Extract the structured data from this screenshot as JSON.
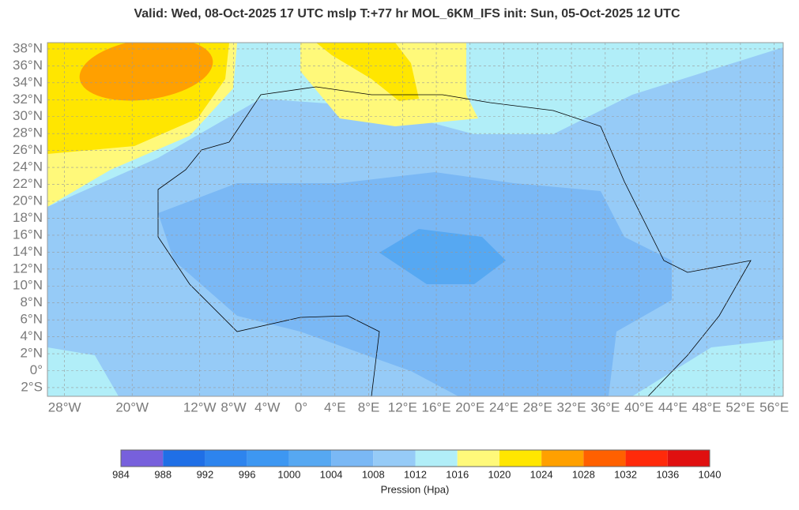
{
  "header": {
    "title": "Valid: Wed, 08-Oct-2025   17 UTC   mslp   T:+77 hr   MOL_6KM_IFS      init: Sun, 05-Oct-2025   12 UTC"
  },
  "map": {
    "lon_ticks": [
      {
        "value": -28,
        "label": "28°W"
      },
      {
        "value": -20,
        "label": "20°W"
      },
      {
        "value": -12,
        "label": "12°W"
      },
      {
        "value": -8,
        "label": "8°W"
      },
      {
        "value": -4,
        "label": "4°W"
      },
      {
        "value": 0,
        "label": "0°"
      },
      {
        "value": 4,
        "label": "4°E"
      },
      {
        "value": 8,
        "label": "8°E"
      },
      {
        "value": 12,
        "label": "12°E"
      },
      {
        "value": 16,
        "label": "16°E"
      },
      {
        "value": 20,
        "label": "20°E"
      },
      {
        "value": 24,
        "label": "24°E"
      },
      {
        "value": 28,
        "label": "28°E"
      },
      {
        "value": 32,
        "label": "32°E"
      },
      {
        "value": 36,
        "label": "36°E"
      },
      {
        "value": 40,
        "label": "40°E"
      },
      {
        "value": 44,
        "label": "44°E"
      },
      {
        "value": 48,
        "label": "48°E"
      },
      {
        "value": 52,
        "label": "52°E"
      },
      {
        "value": 56,
        "label": "56°E"
      }
    ],
    "lat_ticks": [
      {
        "value": 38,
        "label": "38°N"
      },
      {
        "value": 36,
        "label": "36°N"
      },
      {
        "value": 34,
        "label": "34°N"
      },
      {
        "value": 32,
        "label": "32°N"
      },
      {
        "value": 30,
        "label": "30°N"
      },
      {
        "value": 28,
        "label": "28°N"
      },
      {
        "value": 26,
        "label": "26°N"
      },
      {
        "value": 24,
        "label": "24°N"
      },
      {
        "value": 22,
        "label": "22°N"
      },
      {
        "value": 20,
        "label": "20°N"
      },
      {
        "value": 18,
        "label": "18°N"
      },
      {
        "value": 16,
        "label": "16°N"
      },
      {
        "value": 14,
        "label": "14°N"
      },
      {
        "value": 12,
        "label": "12°N"
      },
      {
        "value": 10,
        "label": "10°N"
      },
      {
        "value": 8,
        "label": "8°N"
      },
      {
        "value": 6,
        "label": "6°N"
      },
      {
        "value": 4,
        "label": "4°N"
      },
      {
        "value": 2,
        "label": "2°N"
      },
      {
        "value": 0,
        "label": "0°"
      },
      {
        "value": -2,
        "label": "2°S"
      }
    ]
  },
  "colorbar": {
    "ticks": [
      984,
      988,
      992,
      996,
      1000,
      1004,
      1008,
      1012,
      1016,
      1020,
      1024,
      1028,
      1032,
      1036,
      1040
    ],
    "colors": [
      "#7760dc",
      "#1f6fe6",
      "#2d84ee",
      "#3d97f2",
      "#56a8f2",
      "#7ab8f5",
      "#96cbf7",
      "#b1eef8",
      "#fff97a",
      "#ffe600",
      "#ffa000",
      "#ff6000",
      "#ff2a0a",
      "#e01010"
    ],
    "label": "Pression (Hpa)"
  }
}
